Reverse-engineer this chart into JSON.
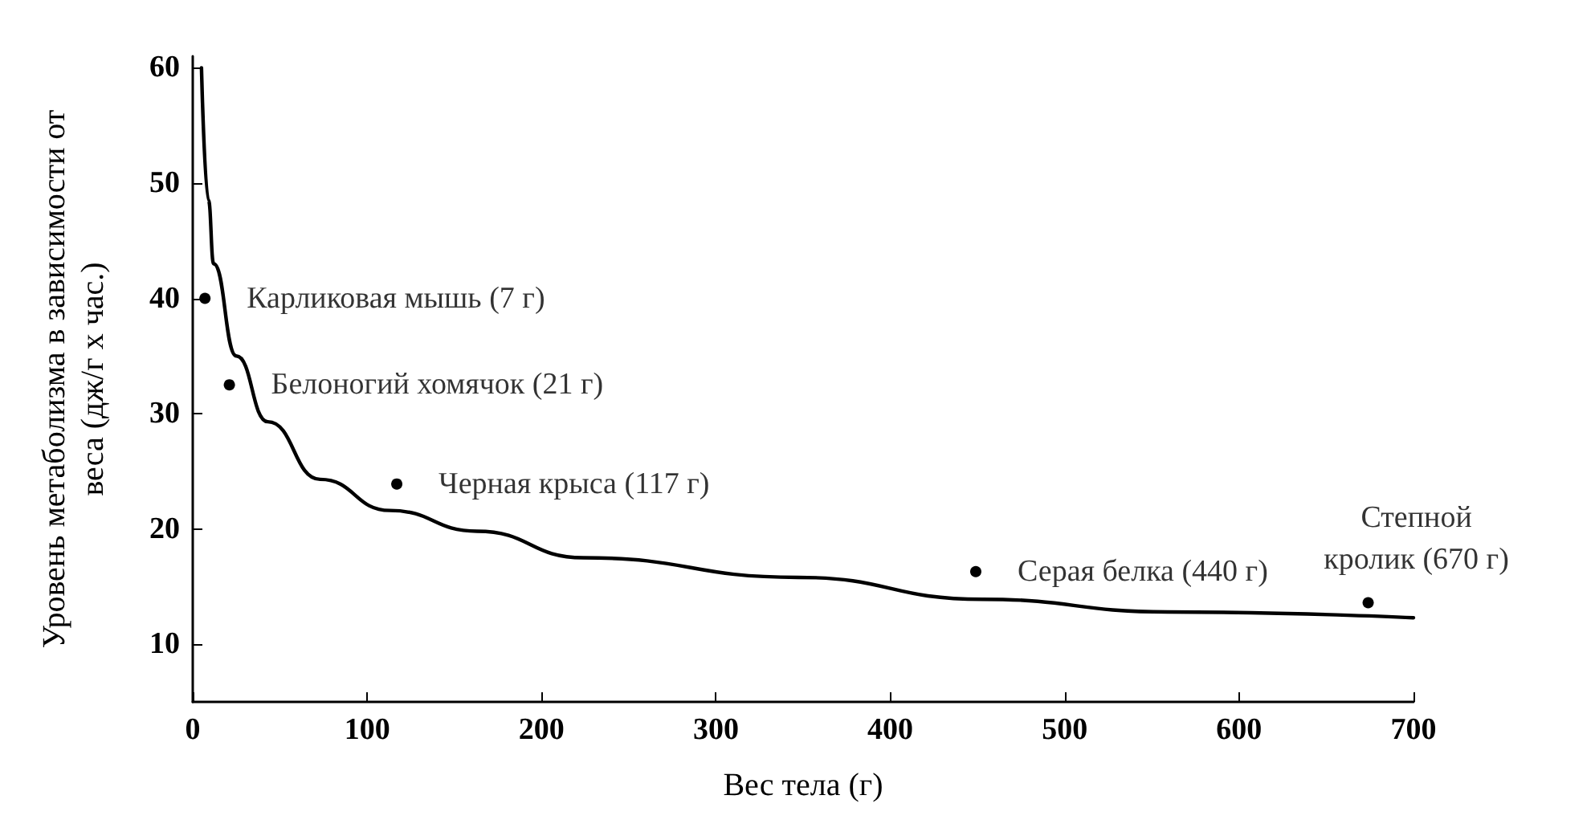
{
  "chart_data": {
    "type": "scatter",
    "xlabel": "Вес тела (г)",
    "ylabel": "Уровень метаболизма в зависимости от\nвеса (дж/г х час.)",
    "xlim": [
      0,
      700
    ],
    "xticks": [
      0,
      100,
      200,
      300,
      400,
      500,
      600,
      700
    ],
    "ylim": [
      5,
      61
    ],
    "yticks": [
      10,
      20,
      30,
      40,
      50,
      60
    ],
    "grid": false,
    "marker": "circle",
    "x": [
      7,
      21,
      117,
      449,
      674
    ],
    "series": [
      {
        "color": "#000000",
        "values": [
          40.0,
          32.5,
          23.9,
          16.3,
          13.6
        ]
      },
      {
        "type": "line",
        "color": "#000000",
        "line_style": "solid",
        "marker": "none",
        "x": [
          5,
          9,
          12,
          25,
          43,
          73,
          113,
          163,
          224,
          347,
          453,
          559,
          700
        ],
        "values": [
          60,
          48.5,
          43,
          35,
          29.3,
          24.3,
          21.6,
          19.8,
          17.5,
          15.8,
          13.9,
          12.8,
          12.3
        ]
      }
    ],
    "annotations": [
      {
        "text": "Карликовая мышь (7 г)",
        "x": 7,
        "y": 40.0
      },
      {
        "text": "Белоногий хомячок (21 г)",
        "x": 21,
        "y": 32.5
      },
      {
        "text": "Черная крыса (117 г)",
        "x": 117,
        "y": 23.9
      },
      {
        "text": "Серая белка (440 г)",
        "x": 449,
        "y": 16.3
      },
      {
        "text": "Степной\nкролик (670 г)",
        "x": 674,
        "y": 13.6
      }
    ]
  }
}
